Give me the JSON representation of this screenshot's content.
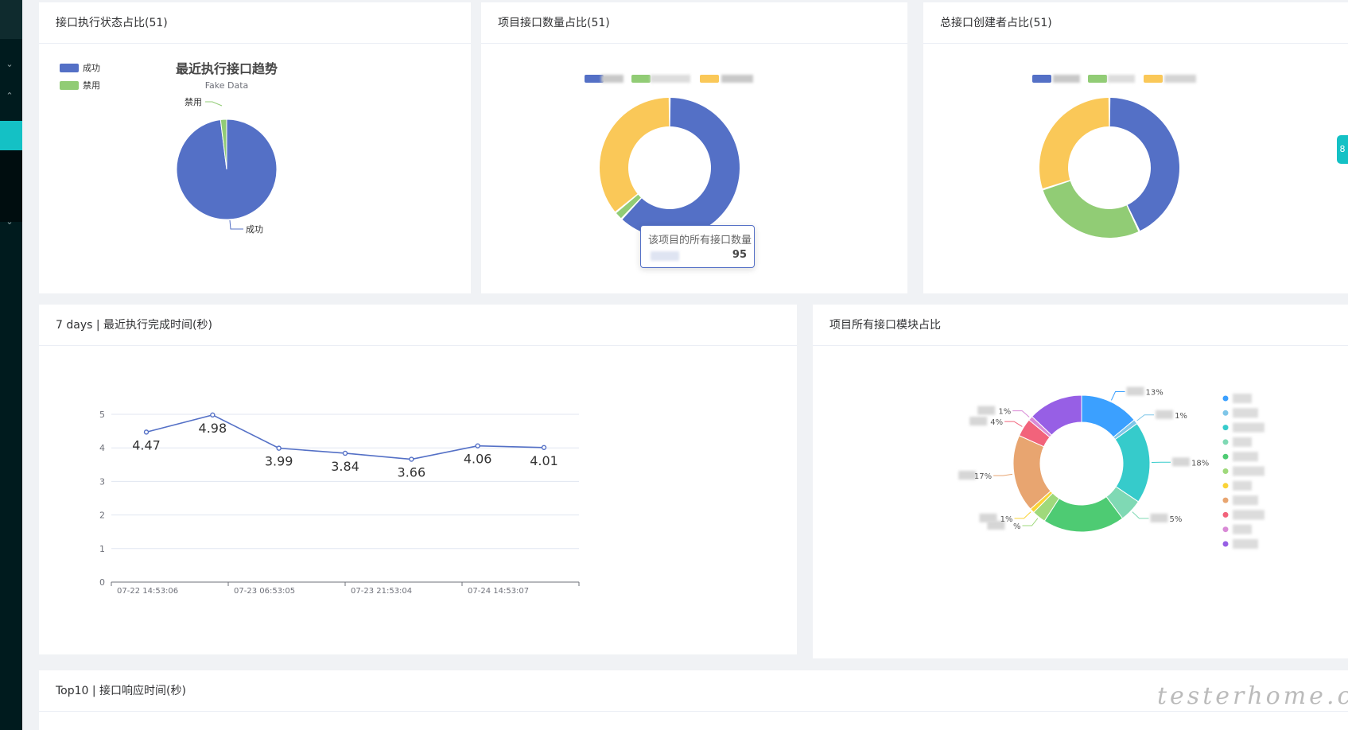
{
  "cards": {
    "status": {
      "title": "接口执行状态占比(51)"
    },
    "project_count": {
      "title": "项目接口数量占比(51)"
    },
    "creator": {
      "title": "总接口创建者占比(51)"
    },
    "duration": {
      "title": "7 days | 最近执行完成时间(秒)"
    },
    "modules": {
      "title": "项目所有接口模块占比"
    },
    "top10": {
      "title": "Top10 | 接口响应时间(秒)"
    }
  },
  "tooltip": {
    "title": "该项目的所有接口数量",
    "value": "95"
  },
  "float_tab": {
    "label": "8"
  },
  "watermark": {
    "text": "testerhome.com"
  },
  "colors": {
    "blue": "#5470c6",
    "green": "#91cc75",
    "yellow": "#fac858",
    "accent": "#14c1c5"
  },
  "sidebar": {
    "icons": [
      "chevron-down-icon",
      "chevron-up-icon",
      "chevron-down-icon"
    ]
  },
  "chart_data": [
    {
      "type": "pie",
      "title": "最近执行接口趋势",
      "subtitle": "Fake Data",
      "legend": [
        "成功",
        "禁用"
      ],
      "slices": [
        {
          "name": "成功",
          "value": 50
        },
        {
          "name": "禁用",
          "value": 1
        }
      ],
      "colors": [
        "#5470c6",
        "#91cc75"
      ],
      "legend_position": "top-left"
    },
    {
      "type": "pie",
      "title": "项目接口数量占比(51)",
      "variant": "donut",
      "slices": [
        {
          "value": 62
        },
        {
          "value": 2
        },
        {
          "value": 36
        }
      ],
      "colors": [
        "#5470c6",
        "#91cc75",
        "#fac858"
      ],
      "legend_position": "top"
    },
    {
      "type": "pie",
      "title": "总接口创建者占比(51)",
      "variant": "donut",
      "slices": [
        {
          "value": 43
        },
        {
          "value": 27
        },
        {
          "value": 30
        }
      ],
      "colors": [
        "#5470c6",
        "#91cc75",
        "#fac858"
      ],
      "legend_position": "top"
    },
    {
      "type": "line",
      "title": "7 days | 最近执行完成时间(秒)",
      "x": [
        "07-22 14:53:06",
        "",
        "07-23 06:53:05",
        "",
        "07-23 21:53:04",
        "",
        "07-24 14:53:07"
      ],
      "x_tick_labels": [
        "07-22 14:53:06",
        "07-23 06:53:05",
        "07-23 21:53:04",
        "07-24 14:53:07"
      ],
      "values": [
        4.47,
        4.98,
        3.99,
        3.84,
        3.66,
        4.06,
        4.01
      ],
      "value_labels": [
        "4.47",
        "4.98",
        "3.99",
        "3.84",
        "3.66",
        "4.06",
        "4.01"
      ],
      "ylim": [
        0,
        5
      ],
      "yticks": [
        "0",
        "1",
        "2",
        "3",
        "4",
        "5"
      ],
      "grid": true,
      "color": "#5470c6"
    },
    {
      "type": "pie",
      "title": "项目所有接口模块占比",
      "variant": "donut",
      "slices": [
        {
          "value": 13,
          "label": "13%"
        },
        {
          "value": 1,
          "label": "1%"
        },
        {
          "value": 18,
          "label": "18%"
        },
        {
          "value": 5,
          "label": "5%"
        },
        {
          "value": 18,
          "label": ""
        },
        {
          "value": 3,
          "label": "%"
        },
        {
          "value": 1,
          "label": "1%"
        },
        {
          "value": 17,
          "label": "17%"
        },
        {
          "value": 4,
          "label": "4%"
        },
        {
          "value": 1,
          "label": "1%"
        },
        {
          "value": 12,
          "label": ""
        }
      ],
      "colors": [
        "#3ba0ff",
        "#7fc6e8",
        "#36cbcb",
        "#7fd9b4",
        "#4ecb73",
        "#9fd97b",
        "#fad337",
        "#e8a570",
        "#f2637b",
        "#d98ad6",
        "#975fe5"
      ],
      "legend_position": "right"
    }
  ]
}
